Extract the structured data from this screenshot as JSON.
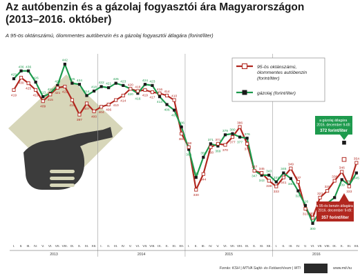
{
  "title": "Az autóbenzin és a gázolaj fogyasztói ára Magyarországon (2013–2016. október)",
  "subtitle": "A 95-ös oktánszámú, ólommentes autóbenzin és a gázolaj fogyasztói átlagára (forint/liter)",
  "source": "Forrás: KSH | MTVA Sajtó- és Fotóarchívum | MTI",
  "url": "www.mti.hu",
  "colors": {
    "petrol": "#b1271f",
    "diesel": "#1d9a4d",
    "callout_diesel_bg": "#1d9a4d",
    "callout_petrol_bg": "#b1271f",
    "badge_bg": "#d7d6b9",
    "nozzle": "#3c3c3c"
  },
  "icons": [
    "fuel-nozzle-icon",
    "mti-logo"
  ],
  "callouts": {
    "diesel": {
      "lines": [
        "a gázolaj átlagára",
        "2016. december 9-től:"
      ],
      "value_line": "372 forint/liter"
    },
    "petrol": {
      "lines": [
        "a 95-ös benzin átlagára",
        "2016. december 9-től:"
      ],
      "value_line": "357 forint/liter"
    }
  },
  "chart_data": {
    "type": "line",
    "x_tick_labels": [
      "I.",
      "II.",
      "III.",
      "IV.",
      "V.",
      "VI.",
      "VII.",
      "VIII.",
      "IX.",
      "X.",
      "XI.",
      "XII.",
      "I.",
      "II.",
      "III.",
      "IV.",
      "V.",
      "VI.",
      "VII.",
      "VIII.",
      "IX.",
      "X.",
      "XI.",
      "XII.",
      "I.",
      "II.",
      "III.",
      "IV.",
      "V.",
      "VI.",
      "VII.",
      "VIII.",
      "IX.",
      "X.",
      "XI.",
      "XII.",
      "I.",
      "II.",
      "III.",
      "IV.",
      "V.",
      "VI.",
      "VII.",
      "VIII.",
      "IX.",
      "X.",
      "XI.",
      "XII."
    ],
    "years": [
      "2013",
      "2014",
      "2015",
      "2016"
    ],
    "ylim": [
      290,
      450
    ],
    "grid": "vertical year separators",
    "legend_position": "top-right",
    "series": [
      {
        "name": "95-ös oktánszámú, ólommentes autóbenzin (forint/liter)",
        "values": [
          419,
          430,
          425,
          419,
          409,
          415,
          421,
          422,
          410,
          397,
          407,
          400,
          404,
          406,
          410,
          414,
          420,
          418,
          419,
          417,
          416,
          414,
          410,
          380,
          368,
          330,
          344,
          368,
          371,
          370,
          377,
          386,
          371,
          347,
          345,
          338,
          333,
          341,
          349,
          337,
          313,
          305,
          323,
          329,
          338,
          346,
          333,
          354
        ],
        "labels": [
          "419",
          "430",
          "425",
          "419",
          "409",
          "415",
          "421",
          "422",
          "410",
          "397",
          "407",
          "400",
          "404",
          "406",
          "410",
          "414",
          "420",
          "418",
          "419",
          "417",
          "416",
          "414",
          "410",
          "380",
          "368",
          "330",
          "344",
          "368",
          "371",
          "370",
          "377",
          "386",
          "371",
          "347",
          "345",
          "338",
          "333",
          "341",
          "349",
          "337",
          "313",
          "305",
          "323",
          "329",
          "338",
          "346",
          "333",
          "354"
        ]
      },
      {
        "name": "gázolaj (forint/liter)",
        "values": [
          429,
          436,
          436,
          426,
          413,
          416,
          423,
          442,
          425,
          424,
          414,
          418,
          422,
          421,
          425,
          423,
          420,
          416,
          424,
          423,
          413,
          406,
          401,
          386,
          366,
          341,
          359,
          371,
          369,
          379,
          380,
          377,
          376,
          347,
          343,
          343,
          337,
          345,
          340,
          329,
          316,
          300,
          311,
          318,
          323,
          339,
          334,
          345
        ],
        "labels": [
          "429",
          "436",
          "436",
          "426",
          "413",
          "416",
          "423",
          "442",
          "425",
          "424",
          "414",
          "418",
          "422",
          "421",
          "425",
          "423",
          "420",
          "416",
          "424",
          "423",
          "413",
          "406",
          "401",
          "386",
          "366",
          "341",
          "359",
          "371",
          "369",
          "379",
          "380",
          "377",
          "376",
          "347",
          "343",
          "343",
          "337",
          "345",
          "340",
          "329",
          "316",
          "300",
          "311",
          "318",
          "323",
          "339",
          "334",
          "345"
        ]
      }
    ],
    "forecast": {
      "month": "XII.",
      "petrol": 357,
      "diesel": 372
    }
  }
}
